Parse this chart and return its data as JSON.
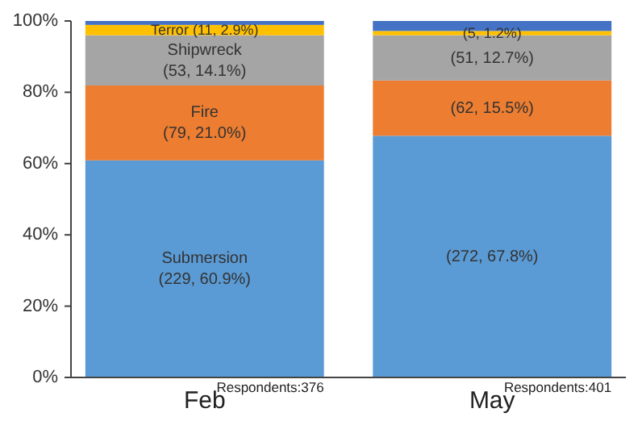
{
  "chart_data": {
    "type": "bar",
    "stacked": true,
    "categories": [
      "Feb",
      "May"
    ],
    "series": [
      {
        "color": "#5b9bd5",
        "values": [
          60.9,
          67.8
        ],
        "value_labels": [
          "Submersion (229, 60.9%)",
          "(272, 67.8%)"
        ]
      },
      {
        "color": "#ed7d31",
        "values": [
          21.0,
          15.5
        ],
        "value_labels": [
          "Fire (79, 21.0%)",
          "(62, 15.5%)"
        ]
      },
      {
        "color": "#a5a5a5",
        "values": [
          14.1,
          12.7
        ],
        "value_labels": [
          "Shipwreck (53, 14.1%)",
          "(51, 12.7%)"
        ]
      },
      {
        "color": "#ffc000",
        "values": [
          2.9,
          1.2
        ],
        "value_labels": [
          "Terror (11, 2.9%)",
          "(5, 1.2%)"
        ]
      },
      {
        "color": "#4472c4",
        "values": [
          1.1,
          2.8
        ]
      }
    ],
    "ylim": [
      0,
      100
    ],
    "yticks": [
      {
        "value": 0,
        "label": "0%"
      },
      {
        "value": 20,
        "label": "20%"
      },
      {
        "value": 40,
        "label": "40%"
      },
      {
        "value": 60,
        "label": "60%"
      },
      {
        "value": 80,
        "label": "80%"
      },
      {
        "value": 100,
        "label": "100%"
      }
    ],
    "annotations": [
      {
        "text": "Respondents:376",
        "x": "Feb",
        "y": 0
      },
      {
        "text": "Respondents:401",
        "x": "May",
        "y": 0
      }
    ]
  }
}
